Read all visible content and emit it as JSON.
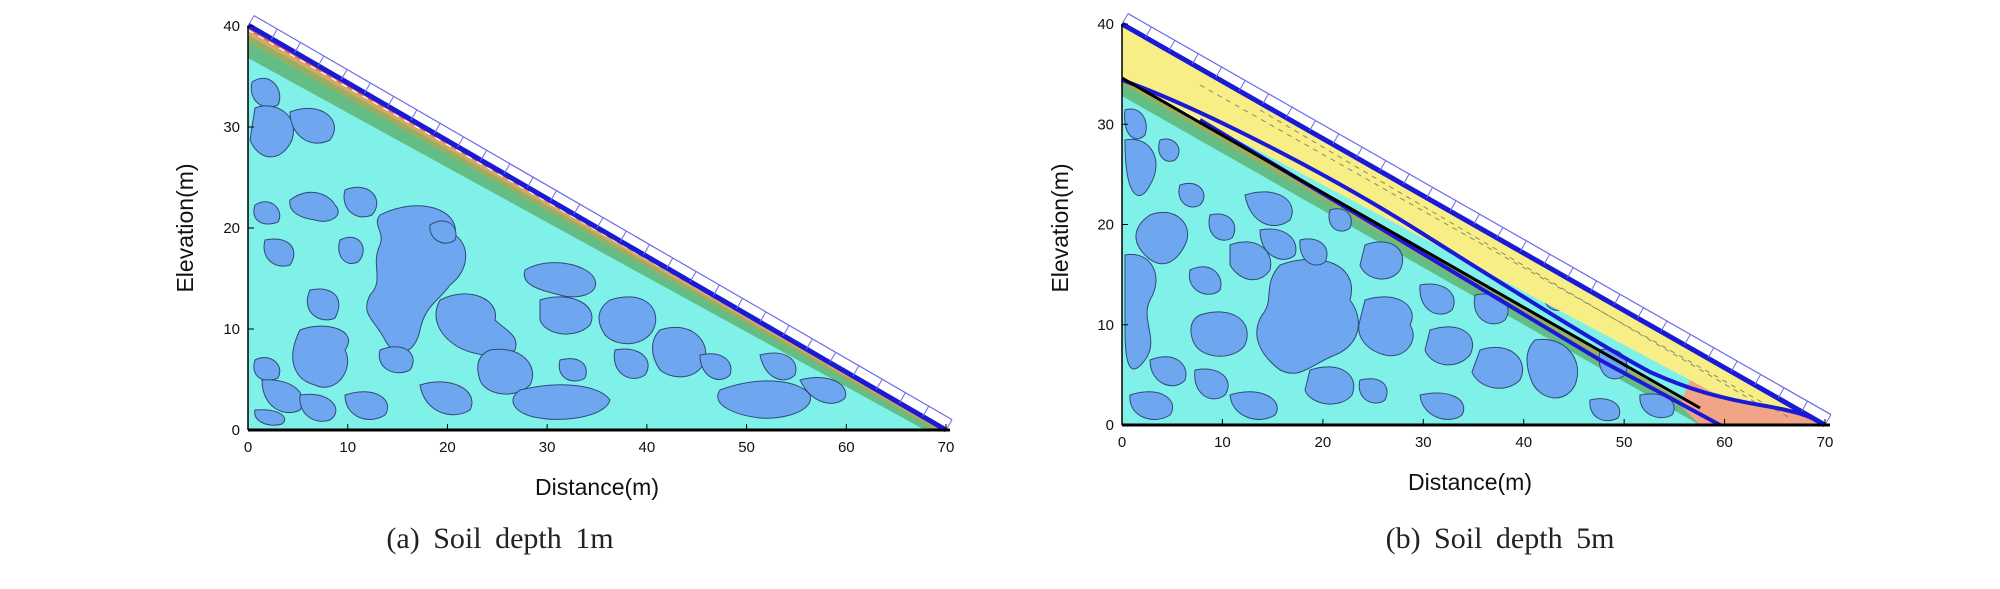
{
  "colors": {
    "water": "#7ff1e9",
    "patch": "#6ea6ef",
    "patch_edge": "#2f4a78",
    "band_olive": "#9aae62",
    "band_green": "#63bd84",
    "band_tan": "#d6a862",
    "band_red": "#e06060",
    "yellow": "#f7ef86",
    "salmon": "#f2a486",
    "slip_blue": "#1a1ad6",
    "ladder": "#6a6ae6",
    "axis": "#000000"
  },
  "panels": [
    {
      "id": "a",
      "caption": "(a) Soil depth 1m",
      "xlabel": "Distance(m)",
      "ylabel": "Elevation(m)",
      "xticks": [
        "0",
        "10",
        "20",
        "30",
        "40",
        "50",
        "60",
        "70"
      ],
      "yticks": [
        "0",
        "10",
        "20",
        "30",
        "40"
      ],
      "xlim": [
        0,
        70
      ],
      "ylim": [
        0,
        40
      ],
      "soil_depth_m": 1
    },
    {
      "id": "b",
      "caption": "(b) Soil depth 5m",
      "xlabel": "Distance(m)",
      "ylabel": "Elevation(m)",
      "xticks": [
        "0",
        "10",
        "20",
        "30",
        "40",
        "50",
        "60",
        "70"
      ],
      "yticks": [
        "0",
        "10",
        "20",
        "30",
        "40"
      ],
      "xlim": [
        0,
        70
      ],
      "ylim": [
        0,
        40
      ],
      "soil_depth_m": 5
    }
  ]
}
